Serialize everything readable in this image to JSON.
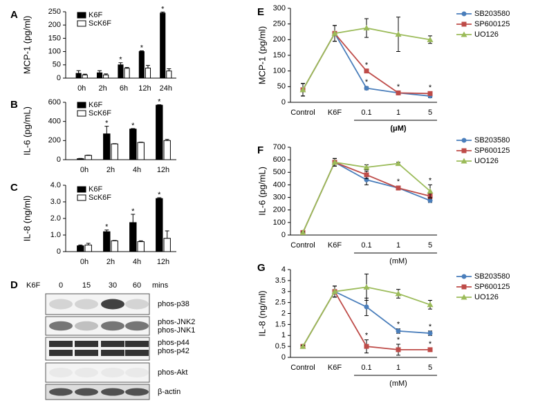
{
  "chart_data": [
    {
      "type": "bar",
      "label": "A",
      "ylabel": "MCP-1 (pg/ml)",
      "categories": [
        "0h",
        "2h",
        "6h",
        "12h",
        "24h"
      ],
      "ylim": [
        0,
        250
      ],
      "yticks": [
        0,
        50,
        100,
        150,
        200,
        250
      ],
      "series": [
        {
          "name": "K6F",
          "color": "#000000",
          "values": [
            18,
            20,
            50,
            100,
            245
          ],
          "errors": [
            10,
            8,
            8,
            3,
            4
          ],
          "significance": [
            null,
            null,
            "*",
            "*",
            "*"
          ]
        },
        {
          "name": "ScK6F",
          "color": "#ffffff",
          "values": [
            12,
            12,
            37,
            38,
            27
          ],
          "errors": [
            3,
            4,
            3,
            10,
            8
          ],
          "significance": [
            null,
            null,
            null,
            null,
            null
          ]
        }
      ]
    },
    {
      "type": "bar",
      "label": "B",
      "ylabel": "IL-6 (pg/mL)",
      "categories": [
        "0h",
        "2h",
        "4h",
        "12h"
      ],
      "ylim": [
        0,
        600
      ],
      "yticks": [
        0,
        200,
        400,
        600
      ],
      "series": [
        {
          "name": "K6F",
          "color": "#000000",
          "values": [
            10,
            270,
            320,
            570
          ],
          "errors": [
            3,
            80,
            5,
            5
          ],
          "significance": [
            null,
            "*",
            "*",
            "*"
          ]
        },
        {
          "name": "ScK6F",
          "color": "#ffffff",
          "values": [
            45,
            165,
            180,
            200
          ],
          "errors": [
            3,
            3,
            3,
            12
          ],
          "significance": [
            null,
            null,
            null,
            null
          ]
        }
      ]
    },
    {
      "type": "bar",
      "label": "C",
      "ylabel": "IL-8 (ng/ml)",
      "categories": [
        "0h",
        "2h",
        "4h",
        "12h"
      ],
      "ylim": [
        0,
        4
      ],
      "yticks": [
        0,
        {
          "value": 1,
          "label": "1.0"
        },
        {
          "value": 2,
          "label": "2.0"
        },
        {
          "value": 3,
          "label": "3.0"
        },
        {
          "value": 4,
          "label": "4.0"
        }
      ],
      "series": [
        {
          "name": "K6F",
          "color": "#000000",
          "values": [
            0.35,
            1.2,
            1.75,
            3.2
          ],
          "errors": [
            0.05,
            0.1,
            0.5,
            0.05
          ],
          "significance": [
            null,
            "*",
            "*",
            "*"
          ]
        },
        {
          "name": "ScK6F",
          "color": "#ffffff",
          "values": [
            0.4,
            0.65,
            0.6,
            0.8
          ],
          "errors": [
            0.1,
            0.02,
            0.05,
            0.45
          ],
          "significance": [
            null,
            null,
            null,
            null
          ]
        }
      ]
    },
    {
      "type": "line",
      "label": "E",
      "ylabel": "MCP-1 (pg/ml)",
      "xcaption": "(μM)",
      "categories": [
        "Control",
        "K6F",
        "0.1",
        "1",
        "5"
      ],
      "ylim": [
        0,
        300
      ],
      "yticks": [
        0,
        50,
        100,
        150,
        200,
        250,
        300
      ],
      "series": [
        {
          "name": "SB203580",
          "color": "#4a7ebb",
          "marker": "circle",
          "values": [
            40,
            220,
            45,
            30,
            20
          ],
          "errors": [
            20,
            25,
            5,
            5,
            5
          ],
          "significance": [
            null,
            null,
            "*",
            null,
            null
          ]
        },
        {
          "name": "SP600125",
          "color": "#be4b48",
          "marker": "square",
          "values": [
            40,
            220,
            100,
            30,
            28
          ],
          "errors": [
            20,
            25,
            5,
            5,
            5
          ],
          "significance": [
            null,
            null,
            "*",
            "*",
            "*"
          ]
        },
        {
          "name": "UO126",
          "color": "#9bbb59",
          "marker": "triangle",
          "values": [
            40,
            220,
            237,
            217,
            200
          ],
          "errors": [
            20,
            25,
            30,
            55,
            12
          ],
          "significance": [
            null,
            null,
            null,
            null,
            null
          ]
        }
      ]
    },
    {
      "type": "line",
      "label": "F",
      "ylabel": "IL-6 (pg/mL)",
      "xcaption": "(mM)",
      "categories": [
        "Control",
        "K6F",
        "0.1",
        "1",
        "5"
      ],
      "ylim": [
        0,
        700
      ],
      "yticks": [
        0,
        100,
        200,
        300,
        400,
        500,
        600,
        700
      ],
      "series": [
        {
          "name": "SB203580",
          "color": "#4a7ebb",
          "marker": "circle",
          "values": [
            20,
            580,
            440,
            375,
            275
          ],
          "errors": [
            5,
            30,
            40,
            15,
            15
          ],
          "significance": [
            null,
            null,
            null,
            "*",
            null
          ]
        },
        {
          "name": "SP600125",
          "color": "#be4b48",
          "marker": "square",
          "values": [
            20,
            580,
            480,
            375,
            310
          ],
          "errors": [
            5,
            30,
            30,
            15,
            20
          ],
          "significance": [
            null,
            null,
            null,
            null,
            null
          ]
        },
        {
          "name": "UO126",
          "color": "#9bbb59",
          "marker": "triangle",
          "values": [
            20,
            580,
            540,
            570,
            350
          ],
          "errors": [
            5,
            30,
            20,
            10,
            50
          ],
          "significance": [
            null,
            null,
            null,
            null,
            "*"
          ]
        }
      ]
    },
    {
      "type": "line",
      "label": "G",
      "ylabel": "IL-8 (ng/ml)",
      "xcaption": "(mM)",
      "categories": [
        "Control",
        "K6F",
        "0.1",
        "1",
        "5"
      ],
      "ylim": [
        0,
        4
      ],
      "yticks": [
        0,
        0.5,
        1,
        1.5,
        2,
        2.5,
        3,
        3.5,
        4
      ],
      "series": [
        {
          "name": "SB203580",
          "color": "#4a7ebb",
          "marker": "circle",
          "values": [
            0.5,
            3,
            2.3,
            1.2,
            1.1
          ],
          "errors": [
            0.05,
            0.25,
            0.4,
            0.1,
            0.1
          ],
          "significance": [
            null,
            null,
            null,
            "*",
            "*"
          ]
        },
        {
          "name": "SP600125",
          "color": "#be4b48",
          "marker": "square",
          "values": [
            0.5,
            3,
            0.5,
            0.35,
            0.35
          ],
          "errors": [
            0.05,
            0.25,
            0.3,
            0.25,
            0.05
          ],
          "significance": [
            null,
            null,
            "*",
            "*",
            "*"
          ]
        },
        {
          "name": "UO126",
          "color": "#9bbb59",
          "marker": "triangle",
          "values": [
            0.5,
            3,
            3.2,
            2.9,
            2.4
          ],
          "errors": [
            0.05,
            0.25,
            0.6,
            0.2,
            0.2
          ],
          "significance": [
            null,
            null,
            null,
            null,
            null
          ]
        }
      ]
    }
  ],
  "blot": {
    "label": "D",
    "treatment": "K6F",
    "times": [
      "0",
      "15",
      "30",
      "60"
    ],
    "unit": "mins",
    "rows": [
      [
        "phos-p38"
      ],
      [
        "phos-JNK2",
        "phos-JNK1"
      ],
      [
        "phos-p44",
        "phos-p42"
      ],
      [
        "phos-Akt"
      ],
      [
        "β-actin"
      ]
    ]
  }
}
